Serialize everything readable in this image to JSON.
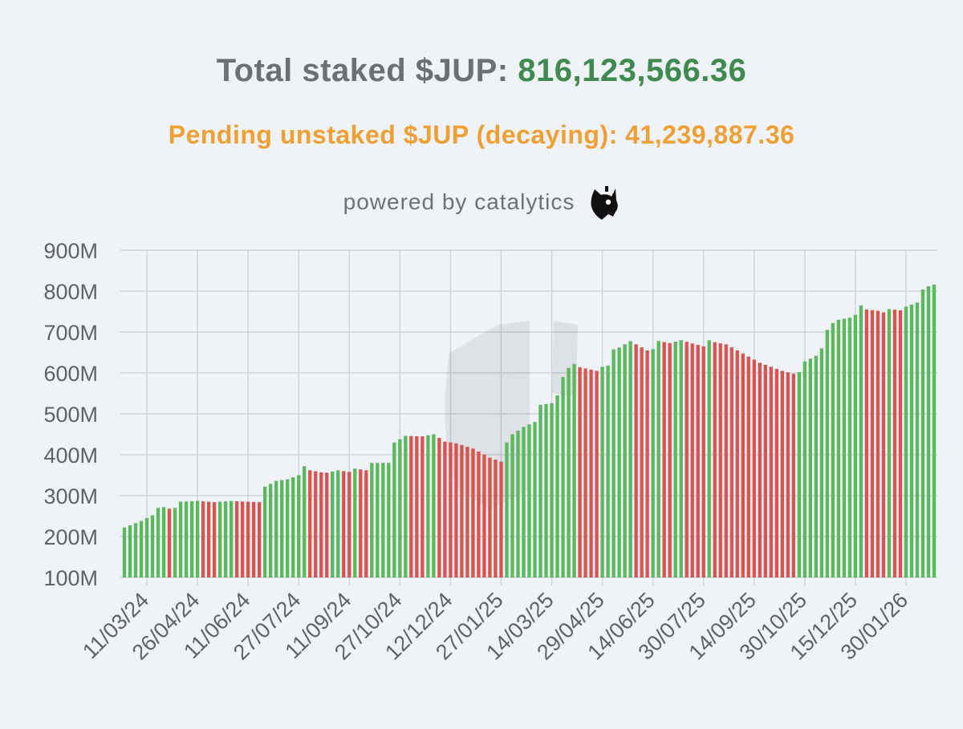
{
  "header": {
    "total_label": "Total staked $JUP:",
    "total_value": "816,123,566.36",
    "pending_text": "Pending unstaked $JUP (decaying): 41,239,887.36",
    "powered_text": "powered by catalytics",
    "logo_icon": "cat-head-icon"
  },
  "colors": {
    "up": "#5cb85c",
    "down": "#d9534f",
    "total_value": "#3e8a4f",
    "pending": "#f0a032",
    "grid": "#cfd3d9"
  },
  "chart_data": {
    "type": "bar",
    "title": "Total staked $JUP",
    "ylim": [
      100,
      900
    ],
    "yunit": "M",
    "yticks": [
      "100M",
      "200M",
      "300M",
      "400M",
      "500M",
      "600M",
      "700M",
      "800M",
      "900M"
    ],
    "xticks": [
      "11/03/24",
      "26/04/24",
      "11/06/24",
      "27/07/24",
      "11/09/24",
      "27/10/24",
      "12/12/24",
      "27/01/25",
      "14/03/25",
      "29/04/25",
      "14/06/25",
      "30/07/25",
      "14/09/25",
      "30/10/25",
      "15/12/25",
      "30/01/26"
    ],
    "grid": true,
    "bars_per_tick": 9,
    "total_bars": 145,
    "anchors": [
      [
        0,
        222
      ],
      [
        3,
        238
      ],
      [
        5,
        252
      ],
      [
        6,
        270
      ],
      [
        7,
        272
      ],
      [
        8,
        268
      ],
      [
        9,
        270
      ],
      [
        10,
        285
      ],
      [
        13,
        287
      ],
      [
        16,
        284
      ],
      [
        19,
        287
      ],
      [
        22,
        285
      ],
      [
        24,
        284
      ],
      [
        25,
        322
      ],
      [
        27,
        336
      ],
      [
        29,
        340
      ],
      [
        31,
        350
      ],
      [
        32,
        372
      ],
      [
        33,
        362
      ],
      [
        35,
        357
      ],
      [
        36,
        356
      ],
      [
        38,
        362
      ],
      [
        40,
        358
      ],
      [
        41,
        366
      ],
      [
        43,
        362
      ],
      [
        44,
        380
      ],
      [
        47,
        380
      ],
      [
        48,
        430
      ],
      [
        50,
        446
      ],
      [
        53,
        445
      ],
      [
        55,
        450
      ],
      [
        57,
        432
      ],
      [
        59,
        428
      ],
      [
        62,
        415
      ],
      [
        65,
        393
      ],
      [
        67,
        383
      ],
      [
        68,
        430
      ],
      [
        69,
        450
      ],
      [
        71,
        468
      ],
      [
        73,
        480
      ],
      [
        74,
        522
      ],
      [
        76,
        526
      ],
      [
        77,
        545
      ],
      [
        78,
        590
      ],
      [
        79,
        612
      ],
      [
        80,
        622
      ],
      [
        81,
        614
      ],
      [
        83,
        608
      ],
      [
        84,
        605
      ],
      [
        85,
        615
      ],
      [
        86,
        618
      ],
      [
        87,
        658
      ],
      [
        88,
        662
      ],
      [
        90,
        678
      ],
      [
        91,
        670
      ],
      [
        93,
        655
      ],
      [
        94,
        658
      ],
      [
        95,
        678
      ],
      [
        97,
        673
      ],
      [
        99,
        680
      ],
      [
        101,
        672
      ],
      [
        103,
        665
      ],
      [
        104,
        680
      ],
      [
        105,
        675
      ],
      [
        107,
        670
      ],
      [
        109,
        655
      ],
      [
        111,
        640
      ],
      [
        113,
        625
      ],
      [
        115,
        615
      ],
      [
        117,
        605
      ],
      [
        119,
        598
      ],
      [
        120,
        602
      ],
      [
        121,
        628
      ],
      [
        123,
        642
      ],
      [
        124,
        660
      ],
      [
        125,
        705
      ],
      [
        126,
        722
      ],
      [
        127,
        730
      ],
      [
        129,
        735
      ],
      [
        130,
        742
      ],
      [
        131,
        765
      ],
      [
        132,
        755
      ],
      [
        134,
        752
      ],
      [
        135,
        748
      ],
      [
        136,
        756
      ],
      [
        138,
        753
      ],
      [
        139,
        762
      ],
      [
        141,
        772
      ],
      [
        142,
        804
      ],
      [
        143,
        812
      ],
      [
        144,
        816
      ]
    ]
  }
}
